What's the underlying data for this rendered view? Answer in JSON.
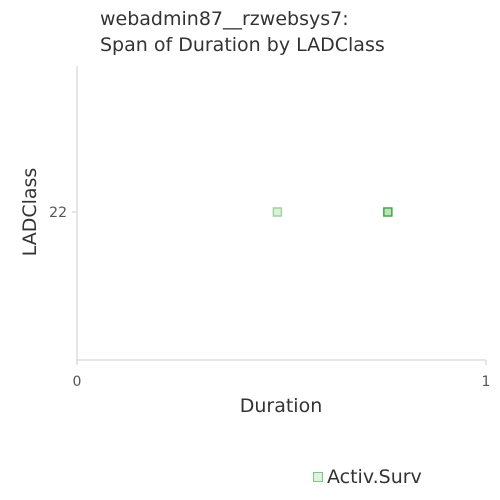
{
  "chart_data": {
    "type": "scatter",
    "title_line1": "webadmin87__rzwebsys7:",
    "title_line2": "Span of Duration by LADClass",
    "xlabel": "Duration",
    "ylabel": "LADClass",
    "xlim": [
      0,
      1
    ],
    "x_ticks": [
      "0",
      "1"
    ],
    "y_categories": [
      "22"
    ],
    "grid": false,
    "legend_position": "bottom",
    "series": [
      {
        "name": "Activ.Surv",
        "color": "#2ca02c",
        "points": [
          {
            "x": 0.49,
            "y": "22",
            "opacity": 0.45
          },
          {
            "x": 0.76,
            "y": "22",
            "opacity": 0.9
          }
        ]
      }
    ]
  }
}
